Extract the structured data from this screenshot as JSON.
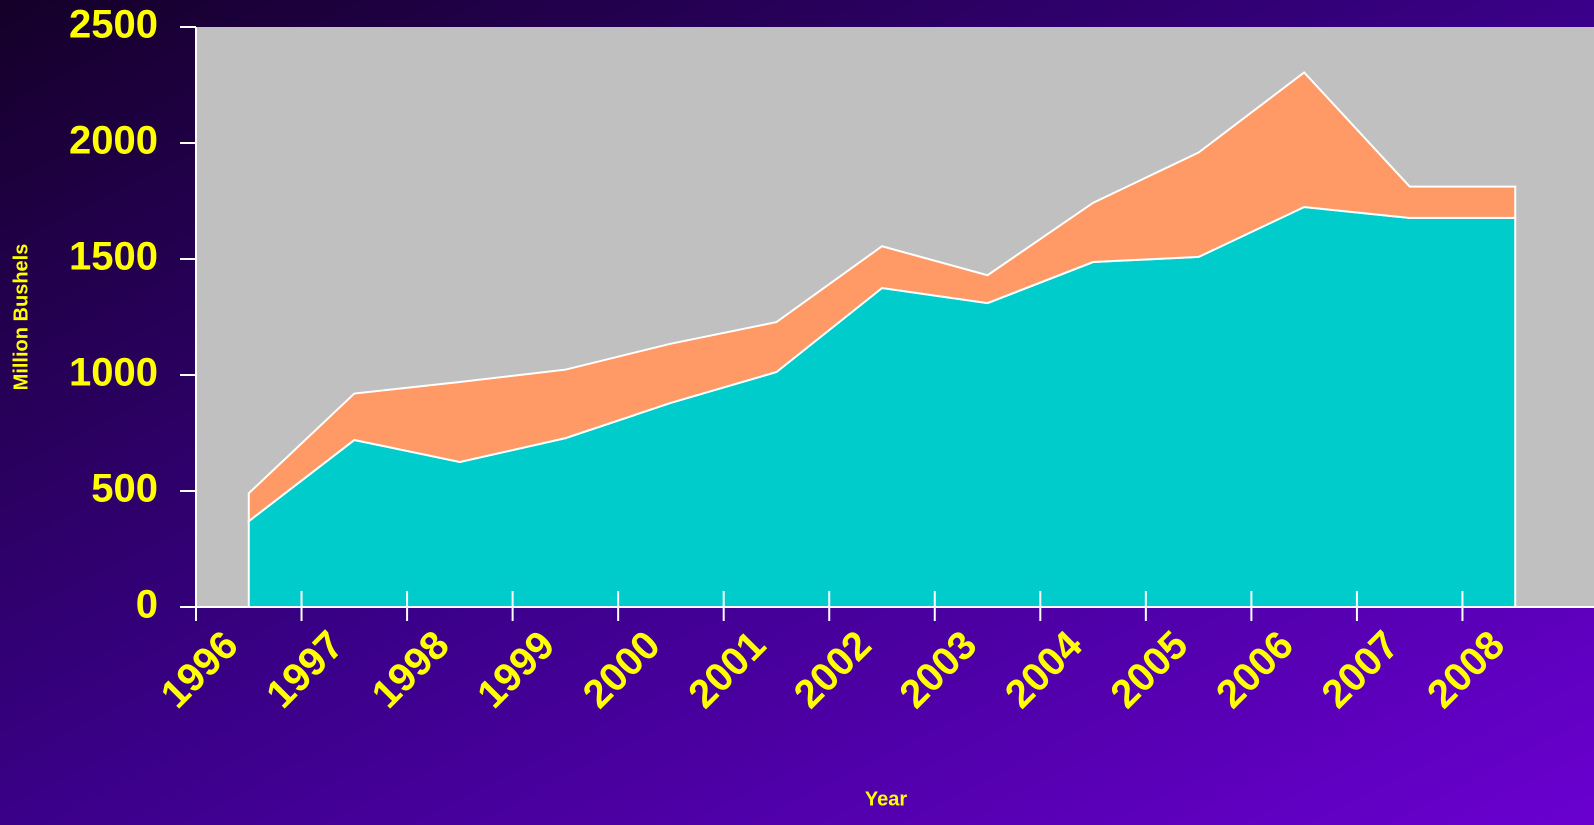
{
  "chart_data": {
    "type": "stacked_area",
    "x_label": "Year",
    "y_label": "Million Bushels",
    "categories": [
      "1996",
      "1997",
      "1998",
      "1999",
      "2000",
      "2001",
      "2002",
      "2003",
      "2004",
      "2005",
      "2006",
      "2007",
      "2008"
    ],
    "series": [
      {
        "color": "#00cccc",
        "values": [
          370,
          720,
          625,
          728,
          880,
          1013,
          1375,
          1310,
          1487,
          1509,
          1724,
          1677,
          1677
        ]
      },
      {
        "color": "#ff9966",
        "values": [
          120,
          200,
          345,
          295,
          255,
          215,
          180,
          120,
          255,
          450,
          580,
          135,
          135
        ]
      }
    ],
    "ylim": [
      0,
      2500
    ],
    "yticks": [
      0,
      500,
      1000,
      1500,
      2000,
      2500
    ]
  }
}
